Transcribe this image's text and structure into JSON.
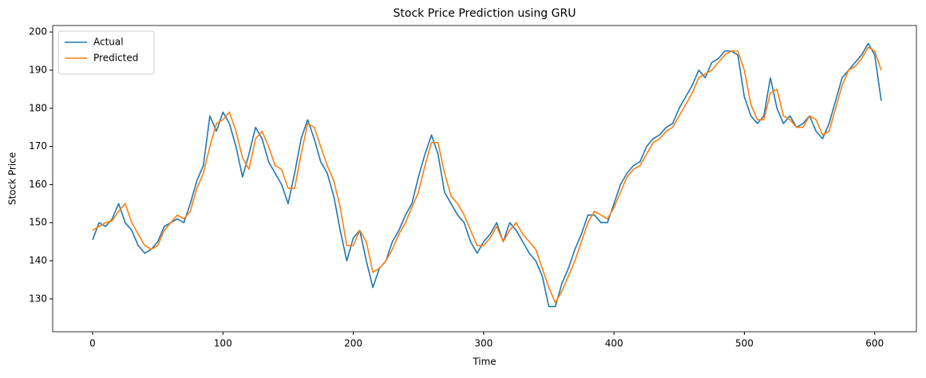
{
  "chart_data": {
    "type": "line",
    "title": "Stock Price Prediction using GRU",
    "x_label": "Time",
    "y_label": "Stock Price",
    "x": [
      0,
      5,
      10,
      15,
      20,
      25,
      30,
      35,
      40,
      45,
      50,
      55,
      60,
      65,
      70,
      75,
      80,
      85,
      90,
      95,
      100,
      105,
      110,
      115,
      120,
      125,
      130,
      135,
      140,
      145,
      150,
      155,
      160,
      165,
      170,
      175,
      180,
      185,
      190,
      195,
      200,
      205,
      210,
      215,
      220,
      225,
      230,
      235,
      240,
      245,
      250,
      255,
      260,
      265,
      270,
      275,
      280,
      285,
      290,
      295,
      300,
      305,
      310,
      315,
      320,
      325,
      330,
      335,
      340,
      345,
      350,
      355,
      360,
      365,
      370,
      375,
      380,
      385,
      390,
      395,
      400,
      405,
      410,
      415,
      420,
      425,
      430,
      435,
      440,
      445,
      450,
      455,
      460,
      465,
      470,
      475,
      480,
      485,
      490,
      495,
      500,
      505,
      510,
      515,
      520,
      525,
      530,
      535,
      540,
      545,
      550,
      555,
      560,
      565,
      570,
      575,
      580,
      585,
      590,
      595,
      600,
      605
    ],
    "series": [
      {
        "name": "Actual",
        "color": "#1f77b4",
        "values": [
          145.5,
          150,
          149,
          151,
          155,
          150,
          148,
          144,
          142,
          143,
          145,
          149,
          150,
          151,
          150,
          155,
          161,
          165,
          178,
          174,
          179,
          176,
          170,
          162,
          168,
          175,
          172,
          166,
          163,
          160,
          155,
          163,
          172,
          177,
          172,
          166,
          163,
          157,
          148,
          140,
          146,
          148,
          140,
          133,
          138,
          140,
          145,
          148,
          152,
          155,
          162,
          168,
          173,
          168,
          158,
          155,
          152,
          150,
          145,
          142,
          145,
          147,
          150,
          145,
          150,
          148,
          145,
          142,
          140,
          136,
          128,
          128,
          134,
          138,
          143,
          147,
          152,
          152,
          150,
          150,
          155,
          160,
          163,
          165,
          166,
          170,
          172,
          173,
          175,
          176,
          180,
          183,
          186,
          190,
          188,
          192,
          193,
          195,
          195,
          194,
          183,
          178,
          176,
          178,
          188,
          180,
          176,
          178,
          175,
          176,
          178,
          174,
          172,
          176,
          182,
          188,
          190,
          192,
          194,
          197,
          194,
          182
        ]
      },
      {
        "name": "Predicted",
        "color": "#ff7f0e",
        "values": [
          148,
          149,
          150,
          150.5,
          153,
          155,
          150,
          147,
          144,
          143,
          144,
          148,
          150,
          152,
          151,
          153,
          159,
          163,
          170,
          176,
          177,
          179,
          174,
          167,
          164,
          172,
          174,
          170,
          165,
          164,
          159,
          159,
          168,
          176,
          175,
          170,
          165,
          161,
          154,
          144,
          144,
          148,
          145,
          137,
          138,
          140,
          143,
          147,
          150,
          154,
          158,
          165,
          171,
          171,
          163,
          157,
          155,
          152,
          148,
          144,
          144,
          146,
          149,
          145,
          148,
          150,
          147,
          145,
          143,
          138,
          133,
          129,
          132,
          136,
          140,
          145,
          150,
          153,
          152,
          151,
          154,
          158,
          162,
          164,
          165,
          168,
          171,
          172,
          174,
          175,
          178,
          181,
          184,
          188,
          189,
          190,
          192,
          194,
          195,
          195,
          190,
          181,
          177,
          177,
          184,
          185,
          178,
          177,
          175,
          175,
          178,
          177,
          173,
          174,
          180,
          186,
          190,
          191,
          193,
          196,
          195,
          190
        ]
      }
    ],
    "xlim": [
      -30.6,
      632
    ],
    "ylim": [
      121.4,
      201.7
    ],
    "xticks": [
      0,
      100,
      200,
      300,
      400,
      500,
      600
    ],
    "yticks": [
      130,
      140,
      150,
      160,
      170,
      180,
      190,
      200
    ],
    "legend": "upper left"
  }
}
